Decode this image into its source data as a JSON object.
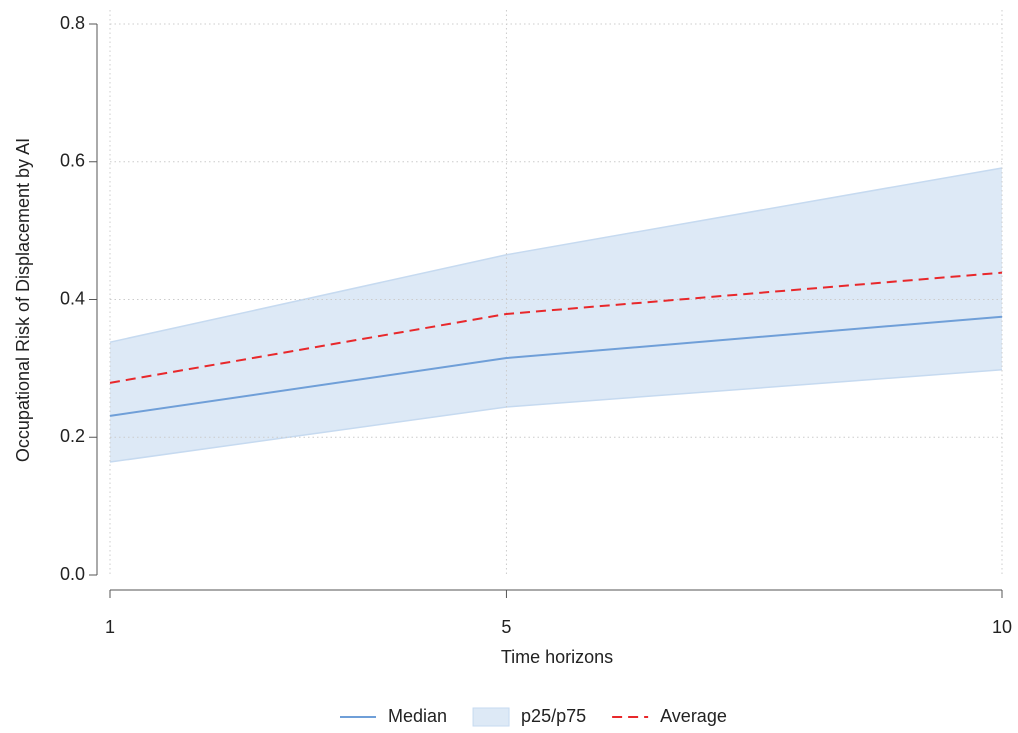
{
  "chart_data": {
    "type": "line",
    "x_label": "Time horizons",
    "y_label": "Occupational Risk of Displacement by AI",
    "x": [
      1,
      5,
      10
    ],
    "xlim": [
      1,
      10
    ],
    "xticks": [
      1,
      5,
      10
    ],
    "ylim": [
      0,
      0.8
    ],
    "yticks": [
      {
        "value": 0,
        "label": "0.0"
      },
      0.2,
      0.4,
      0.6,
      0.8
    ],
    "grid": true,
    "legend": "bottom",
    "series": [
      {
        "name": "Median",
        "color": "#6f9fd8",
        "values": [
          0.231,
          0.315,
          0.375
        ]
      },
      {
        "name": "p25/p75",
        "color": "#dde9f6",
        "kind": "band",
        "lower": [
          0.164,
          0.244,
          0.298
        ],
        "upper": [
          0.338,
          0.465,
          0.591
        ]
      },
      {
        "name": "Average",
        "color": "#e8282b",
        "dash": true,
        "values": [
          0.279,
          0.379,
          0.439
        ]
      }
    ]
  }
}
